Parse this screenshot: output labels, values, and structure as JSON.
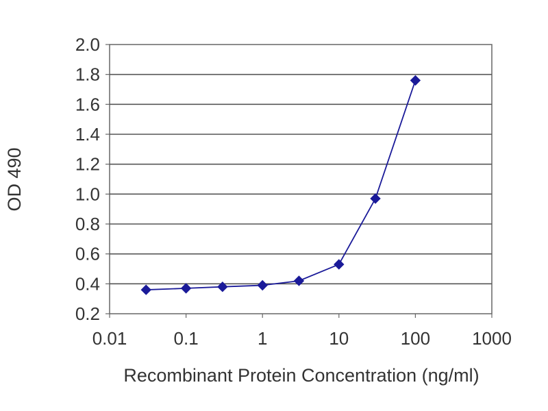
{
  "chart_data": {
    "type": "line",
    "title": "",
    "xlabel": "Recombinant Protein Concentration (ng/ml)",
    "ylabel": "OD 490",
    "xscale": "log",
    "xlim": [
      0.01,
      1000
    ],
    "ylim": [
      0.2,
      2.0
    ],
    "grid": "horizontal",
    "legend": "none",
    "x_tick_labels": [
      "0.01",
      "0.1",
      "1",
      "10",
      "100",
      "1000"
    ],
    "x_tick_values": [
      0.01,
      0.1,
      1,
      10,
      100,
      1000
    ],
    "y_tick_labels": [
      "0.2",
      "0.4",
      "0.6",
      "0.8",
      "1.0",
      "1.2",
      "1.4",
      "1.6",
      "1.8",
      "2.0"
    ],
    "y_tick_values": [
      0.2,
      0.4,
      0.6,
      0.8,
      1.0,
      1.2,
      1.4,
      1.6,
      1.8,
      2.0
    ],
    "series": [
      {
        "color": "#1a1a99",
        "marker": "diamond",
        "x": [
          0.03,
          0.1,
          0.3,
          1,
          3,
          10,
          30,
          100
        ],
        "y": [
          0.36,
          0.37,
          0.38,
          0.39,
          0.42,
          0.53,
          0.97,
          1.76
        ]
      }
    ],
    "colors": {
      "plot_border": "#666666",
      "gridline": "#555555",
      "axis": "#666666"
    }
  }
}
